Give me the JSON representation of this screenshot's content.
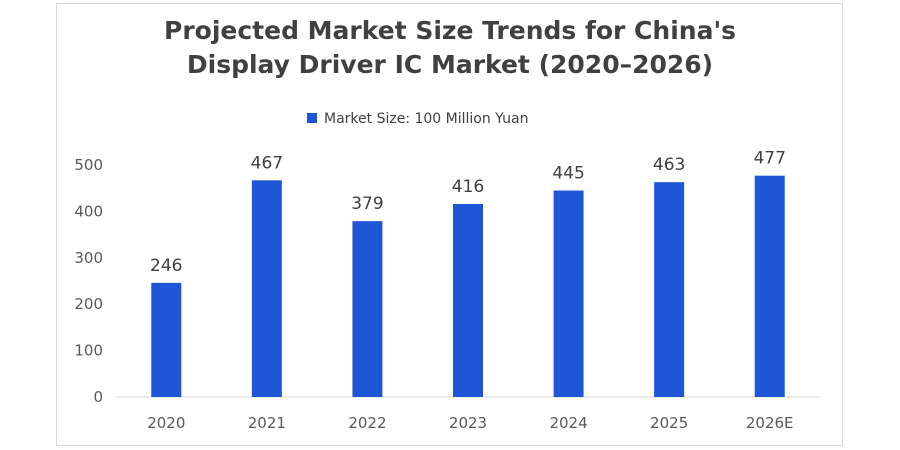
{
  "chart_data": {
    "type": "bar",
    "title_lines": [
      "Projected Market Size Trends for China's",
      "Display Driver IC Market (2020–2026)"
    ],
    "categories": [
      "2020",
      "2021",
      "2022",
      "2023",
      "2024",
      "2025",
      "2026E"
    ],
    "series": [
      {
        "name": "Market Size: 100 Million Yuan",
        "values": [
          246,
          467,
          379,
          416,
          445,
          463,
          477
        ],
        "color": "#1f56d6"
      }
    ],
    "y_ticks": [
      "0",
      "100",
      "200",
      "300",
      "400",
      "500"
    ],
    "ylim": [
      0,
      500
    ],
    "grid": false,
    "legend_position": "top-center",
    "data_labels": true
  }
}
